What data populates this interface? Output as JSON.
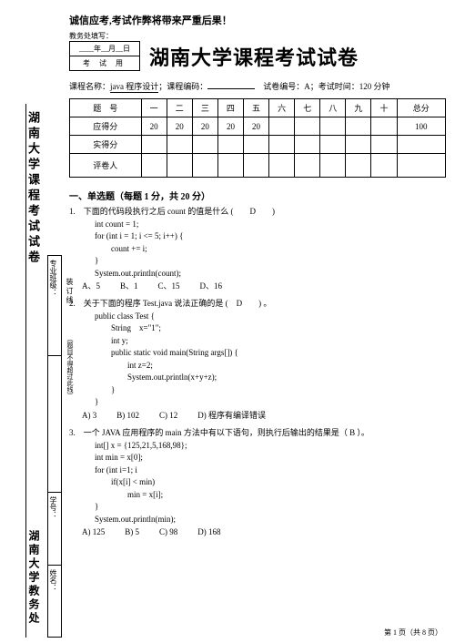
{
  "header": {
    "warning": "诚信应考,考试作弊将带来严重后果！",
    "fill_label": "教务处填写：",
    "date_blank": "____年__月__日",
    "exam_use": "考 试 用",
    "title": "湖南大学课程考试试卷"
  },
  "meta": {
    "course_label": "课程名称：",
    "course_name": "java 程序设计",
    "code_label": "；课程编码：",
    "paper_label": "试卷编号：A；考试时间：120 分钟"
  },
  "score_table": {
    "headers": [
      "题　号",
      "一",
      "二",
      "三",
      "四",
      "五",
      "六",
      "七",
      "八",
      "九",
      "十",
      "总分"
    ],
    "should_row_label": "应得分",
    "should_row": [
      "20",
      "20",
      "20",
      "20",
      "20",
      "",
      "",
      "",
      "",
      "",
      "100"
    ],
    "actual_row_label": "实得分",
    "marker_row_label": "评卷人"
  },
  "section1": {
    "title": "一、单选题（每题 1 分，共 20 分）",
    "q1": {
      "text": "1.　下面的代码段执行之后 count 的值是什么 (　　D　　)",
      "code": [
        "int count = 1;",
        "for (int i = 1; i <= 5; i++) {",
        "        count += i;",
        "}",
        "System.out.println(count);"
      ],
      "opts": [
        "A、5",
        "B、1",
        "C、15",
        "D、16"
      ]
    },
    "q2": {
      "text": "2.　关于下面的程序 Test.java 说法正确的是 (　D　　) 。",
      "code": [
        "public class Test {",
        "        String    x=\"1\";",
        "        int y;",
        "        public static void main(String args[]) {",
        "                int z=2;",
        "                System.out.println(x+y+z);",
        "        }",
        "}"
      ],
      "opts": [
        "A) 3",
        "B) 102",
        "C) 12",
        "D) 程序有编译错误"
      ]
    },
    "q3": {
      "text": "3.　一个 JAVA 应用程序的 main 方法中有以下语句，则执行后输出的结果是（  B  ）。",
      "code": [
        "int[] x = {125,21,5,168,98};",
        "int min = x[0];",
        "for (int i=1; i<x.length; i++){",
        "        if(x[i] < min)",
        "                min = x[i];",
        "}",
        "System.out.println(min);"
      ],
      "opts": [
        "A) 125",
        "B) 5",
        "C) 98",
        "D) 168"
      ]
    }
  },
  "side": {
    "vtitle": "湖南大学课程考试试卷",
    "vtitle2": "湖南大学教务处",
    "binding": "装订线",
    "note": "（题目不得超过此线）",
    "box1": "专业班级：",
    "box3": "学号：",
    "box4": "姓名："
  },
  "footer": {
    "text": "第 1 页（共 8 页）"
  }
}
